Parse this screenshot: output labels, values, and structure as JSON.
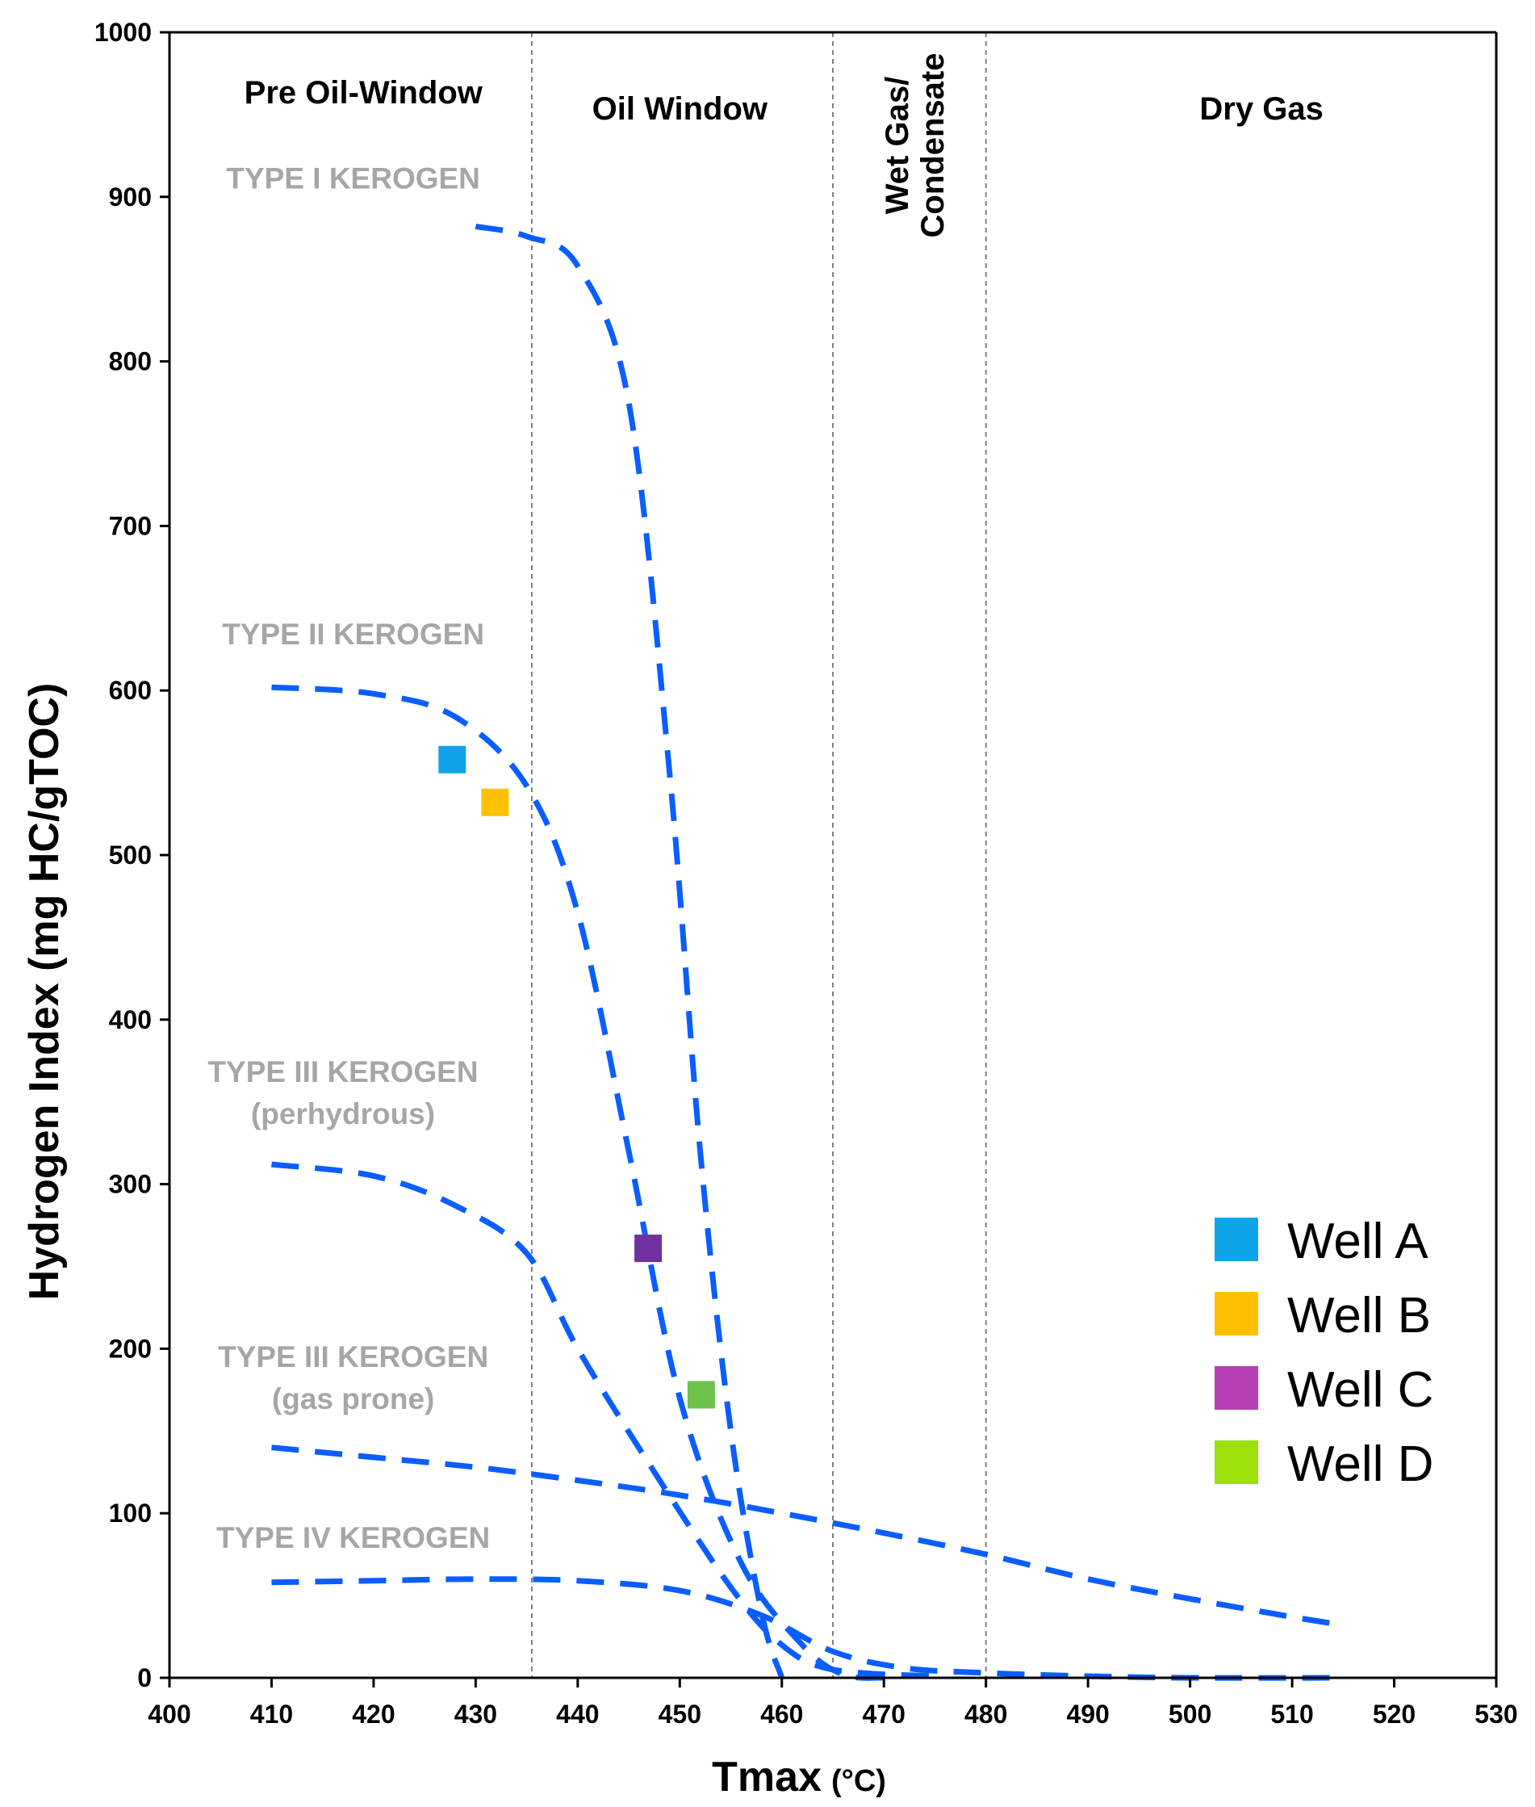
{
  "chart_data": {
    "type": "scatter",
    "title": "",
    "xlabel": "Tmax",
    "xlabel_unit": "(°C)",
    "ylabel": "Hydrogen Index (mg HC/gTOC)",
    "xlim": [
      400,
      530
    ],
    "ylim": [
      0,
      1000
    ],
    "x_ticks": [
      400,
      410,
      420,
      430,
      440,
      450,
      460,
      470,
      480,
      490,
      500,
      510,
      520,
      530
    ],
    "y_ticks": [
      0,
      100,
      200,
      300,
      400,
      500,
      600,
      700,
      800,
      900,
      1000
    ],
    "grid": false,
    "zone_boundaries": [
      435.5,
      465,
      480
    ],
    "zones": [
      {
        "label": "Pre Oil-Window",
        "x_center": 419
      },
      {
        "label": "Oil Window",
        "x_center": 450
      },
      {
        "label": "Wet Gas/",
        "label2": "Condensate",
        "x_center": 473
      },
      {
        "label": "Dry Gas",
        "x_center": 507
      }
    ],
    "kerogen_curves": [
      {
        "name": "TYPE I KEROGEN",
        "label_lines": [
          "TYPE I KEROGEN"
        ],
        "label_anchor": [
          418,
          905
        ],
        "points": [
          [
            430,
            882
          ],
          [
            435,
            876
          ],
          [
            440,
            858
          ],
          [
            445,
            775
          ],
          [
            449,
            550
          ],
          [
            452,
            320
          ],
          [
            455,
            150
          ],
          [
            458,
            40
          ],
          [
            460,
            0
          ]
        ]
      },
      {
        "name": "TYPE II KEROGEN",
        "label_lines": [
          "TYPE II KEROGEN"
        ],
        "label_anchor": [
          418,
          628
        ],
        "points": [
          [
            410,
            602
          ],
          [
            420,
            598
          ],
          [
            428,
            584
          ],
          [
            435,
            542
          ],
          [
            440,
            465
          ],
          [
            445,
            320
          ],
          [
            450,
            170
          ],
          [
            456,
            70
          ],
          [
            462,
            20
          ],
          [
            466,
            2
          ],
          [
            470,
            0
          ]
        ]
      },
      {
        "name": "TYPE III KEROGEN (perhydrous)",
        "label_lines": [
          "TYPE III KEROGEN",
          "(perhydrous)"
        ],
        "label_anchor": [
          417,
          362
        ],
        "points": [
          [
            410,
            312
          ],
          [
            420,
            305
          ],
          [
            428,
            287
          ],
          [
            435,
            258
          ],
          [
            440,
            200
          ],
          [
            447,
            130
          ],
          [
            455,
            55
          ],
          [
            460,
            20
          ],
          [
            465,
            5
          ],
          [
            475,
            1
          ]
        ]
      },
      {
        "name": "TYPE III KEROGEN (gas prone)",
        "label_lines": [
          "TYPE III KEROGEN",
          "(gas prone)"
        ],
        "label_anchor": [
          418,
          189
        ],
        "points": [
          [
            410,
            140
          ],
          [
            420,
            134
          ],
          [
            430,
            128
          ],
          [
            440,
            120
          ],
          [
            450,
            111
          ],
          [
            460,
            100
          ],
          [
            470,
            88
          ],
          [
            480,
            75
          ],
          [
            490,
            60
          ],
          [
            500,
            48
          ],
          [
            510,
            37
          ],
          [
            515,
            32
          ]
        ]
      },
      {
        "name": "TYPE IV KEROGEN",
        "label_lines": [
          "TYPE IV KEROGEN"
        ],
        "label_anchor": [
          418,
          79
        ],
        "points": [
          [
            410,
            58
          ],
          [
            420,
            59
          ],
          [
            430,
            60
          ],
          [
            440,
            59
          ],
          [
            450,
            53
          ],
          [
            458,
            38
          ],
          [
            465,
            16
          ],
          [
            472,
            6
          ],
          [
            480,
            3
          ],
          [
            490,
            1
          ],
          [
            500,
            0
          ],
          [
            515,
            0
          ]
        ]
      }
    ],
    "series": [
      {
        "name": "Well A",
        "color": "#11a3e8",
        "x": 427.7,
        "y": 558
      },
      {
        "name": "Well B",
        "color": "#ffc000",
        "x": 431.9,
        "y": 532
      },
      {
        "name": "Well C",
        "color": "#7030a0",
        "x": 446.9,
        "y": 261
      },
      {
        "name": "Well D",
        "color": "#6cc24a",
        "x": 452.1,
        "y": 172
      }
    ],
    "legend": {
      "placement": "right-middle",
      "entries": [
        {
          "label": "Well A",
          "color": "#0ea5e8"
        },
        {
          "label": "Well B",
          "color": "#ffc000"
        },
        {
          "label": "Well C",
          "color": "#b63fb3"
        },
        {
          "label": "Well D",
          "color": "#9ee009"
        }
      ]
    },
    "curve_color": "#0a5eff",
    "boundary_color": "#7f7f7f"
  }
}
